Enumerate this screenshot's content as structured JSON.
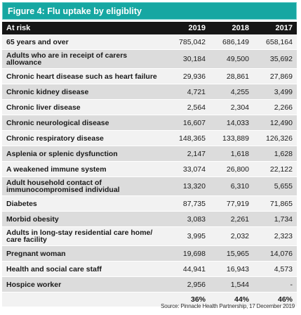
{
  "figure_title": "Figure 4: Flu uptake by eligiblity",
  "table": {
    "header": {
      "label": "At risk",
      "years": [
        "2019",
        "2018",
        "2017"
      ]
    },
    "rows": [
      {
        "label": "65 years and over",
        "v2019": "785,042",
        "v2018": "686,149",
        "v2017": "658,164"
      },
      {
        "label": "Adults who are in receipt of carers allowance",
        "v2019": "30,184",
        "v2018": "49,500",
        "v2017": "35,692"
      },
      {
        "label": "Chronic heart disease such as heart failure",
        "v2019": "29,936",
        "v2018": "28,861",
        "v2017": "27,869"
      },
      {
        "label": "Chronic kidney disease",
        "v2019": "4,721",
        "v2018": "4,255",
        "v2017": "3,499"
      },
      {
        "label": "Chronic liver disease",
        "v2019": "2,564",
        "v2018": "2,304",
        "v2017": "2,266"
      },
      {
        "label": "Chronic neurological disease",
        "v2019": "16,607",
        "v2018": "14,033",
        "v2017": "12,490"
      },
      {
        "label": "Chronic respiratory disease",
        "v2019": "148,365",
        "v2018": "133,889",
        "v2017": "126,326"
      },
      {
        "label": "Asplenia or splenic dysfunction",
        "v2019": "2,147",
        "v2018": "1,618",
        "v2017": "1,628"
      },
      {
        "label": "A weakened immune system",
        "v2019": "33,074",
        "v2018": "26,800",
        "v2017": "22,122"
      },
      {
        "label": "Adult household contact of immunocompromised individual",
        "v2019": "13,320",
        "v2018": "6,310",
        "v2017": "5,655"
      },
      {
        "label": "Diabetes",
        "v2019": "87,735",
        "v2018": "77,919",
        "v2017": "71,865"
      },
      {
        "label": "Morbid obesity",
        "v2019": "3,083",
        "v2018": "2,261",
        "v2017": "1,734"
      },
      {
        "label": "Adults in long-stay residential care home/ care facility",
        "v2019": "3,995",
        "v2018": "2,032",
        "v2017": "2,323"
      },
      {
        "label": "Pregnant woman",
        "v2019": "19,698",
        "v2018": "15,965",
        "v2017": "14,076"
      },
      {
        "label": "Health and social care staff",
        "v2019": "44,941",
        "v2018": "16,943",
        "v2017": "4,573"
      },
      {
        "label": "Hospice worker",
        "v2019": "2,956",
        "v2018": "1,544",
        "v2017": "-"
      }
    ],
    "totals": {
      "label": "",
      "v2019": "36%",
      "v2018": "44%",
      "v2017": "46%"
    }
  },
  "source": "Source: Pinnacle Health Partnership, 17 December 2019"
}
